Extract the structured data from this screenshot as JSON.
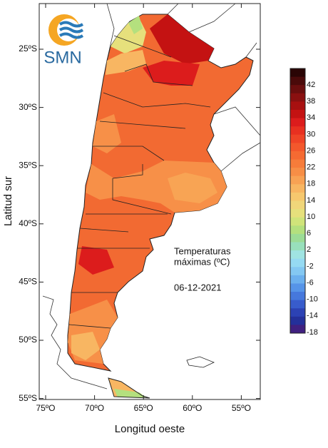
{
  "logo": {
    "text": "SMN"
  },
  "annotation": {
    "lines": [
      "Temperaturas",
      "máximas (ºC)"
    ],
    "date": "06-12-2021"
  },
  "axes": {
    "x_label": "Longitud oeste",
    "y_label": "Latitud sur",
    "x_ticks": [
      "75ºO",
      "70ºO",
      "65ºO",
      "60ºO",
      "55ºO"
    ],
    "y_ticks": [
      "25ºS",
      "30ºS",
      "35ºS",
      "40ºS",
      "45ºS",
      "50ºS",
      "55ºS"
    ]
  },
  "colorbar": {
    "labels": [
      "42",
      "38",
      "34",
      "30",
      "26",
      "22",
      "18",
      "14",
      "10",
      "6",
      "2",
      "-2",
      "-6",
      "-10",
      "-14",
      "-18"
    ],
    "colors": [
      "#2a0505",
      "#4a0a0a",
      "#6a0e0e",
      "#8a1010",
      "#a81010",
      "#c41212",
      "#dc1c1c",
      "#e83020",
      "#ef4426",
      "#f3582c",
      "#f56a32",
      "#f67c3a",
      "#f78e46",
      "#f8a254",
      "#f8b662",
      "#f6c86e",
      "#f0d67a",
      "#e6e07c",
      "#d0e47a",
      "#b4e07e",
      "#9cdc96",
      "#98e0bc",
      "#a0e4e2",
      "#96daf2",
      "#84c8f2",
      "#6cb0ee",
      "#5694e8",
      "#4678dc",
      "#385ccc",
      "#2c42b4",
      "#24309a",
      "#402080"
    ]
  }
}
